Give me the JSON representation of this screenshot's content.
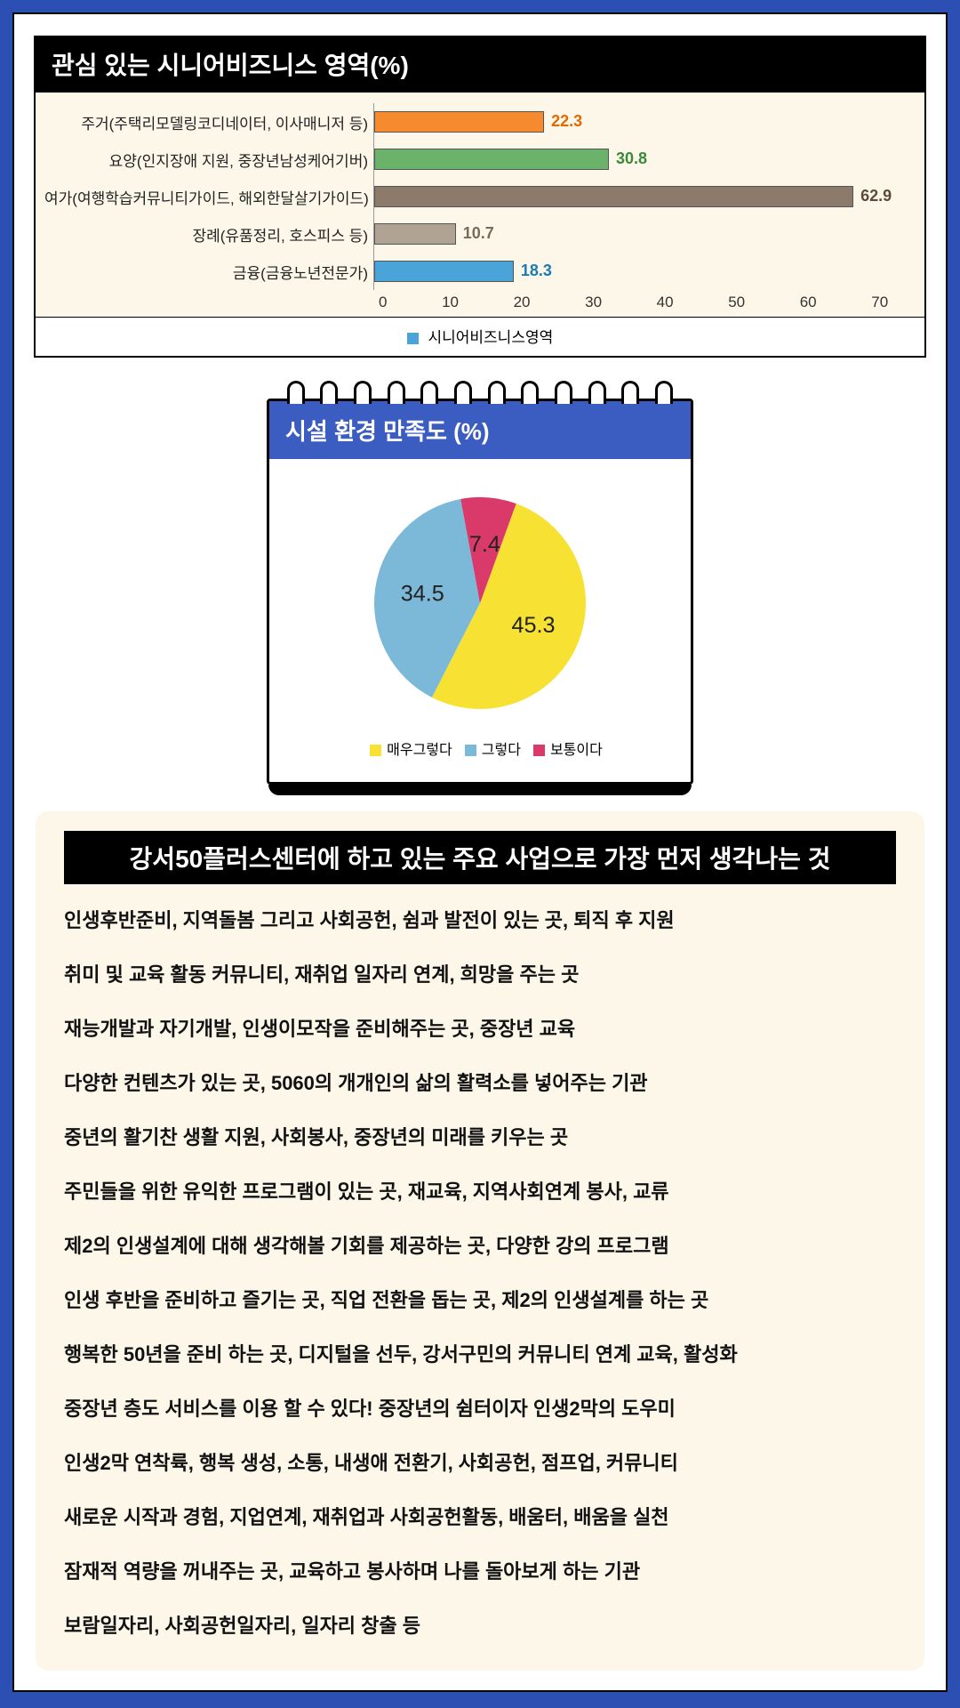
{
  "bar_chart": {
    "title": "관심 있는 시니어비즈니스 영역(%)",
    "type": "bar-horizontal",
    "xmax": 70,
    "xtick_step": 10,
    "xticks": [
      0,
      10,
      20,
      30,
      40,
      50,
      60,
      70
    ],
    "plot_bg": "#fdf7ea",
    "border_color": "#000000",
    "categories": [
      "주거(주택리모델링코디네이터, 이사매니저 등)",
      "요양(인지장애 지원, 중장년남성케어기버)",
      "여가(여행학습커뮤니티가이드, 해외한달살기가이드)",
      "장례(유품정리, 호스피스 등)",
      "금융(금융노년전문가)"
    ],
    "values": [
      22.3,
      30.8,
      62.9,
      10.7,
      18.3
    ],
    "colors": [
      "#f58b2e",
      "#6bb36b",
      "#8c7a6b",
      "#b0a393",
      "#4aa3d9"
    ],
    "value_colors": [
      "#e06a00",
      "#3a8a3a",
      "#5c4a3a",
      "#7a6a5a",
      "#1c7bb3"
    ],
    "legend_label": "시니어비즈니스영역",
    "legend_color": "#4aa3d9"
  },
  "pie_chart": {
    "title": "시설 환경 만족도 (%)",
    "type": "pie",
    "header_bg": "#3b5cc0",
    "border_color": "#000000",
    "slices": [
      {
        "label": "매우그렇다",
        "value": 45.3,
        "color": "#f7e233"
      },
      {
        "label": "그렇다",
        "value": 34.5,
        "color": "#7cb8d8"
      },
      {
        "label": "보통이다",
        "value": 7.4,
        "color": "#d93a6a"
      }
    ],
    "label_fontsize": 18,
    "start_angle_deg": -70
  },
  "text_card": {
    "title": "강서50플러스센터에 하고 있는 주요 사업으로 가장 먼저 생각나는 것",
    "bg": "#fdf7ea",
    "lines": [
      "인생후반준비, 지역돌봄 그리고 사회공헌, 쉼과 발전이 있는 곳, 퇴직 후 지원",
      "취미 및 교육 활동 커뮤니티, 재취업 일자리 연계, 희망을 주는 곳",
      "재능개발과 자기개발, 인생이모작을 준비해주는 곳, 중장년 교육",
      "다양한 컨텐츠가 있는 곳, 5060의 개개인의 삶의 활력소를 넣어주는 기관",
      "중년의 활기찬 생활 지원, 사회봉사, 중장년의 미래를 키우는 곳",
      "주민들을 위한 유익한 프로그램이 있는 곳, 재교육, 지역사회연계 봉사, 교류",
      "제2의 인생설계에 대해 생각해볼 기회를 제공하는 곳, 다양한 강의 프로그램",
      "인생 후반을 준비하고 즐기는 곳, 직업 전환을 돕는 곳, 제2의 인생설계를 하는 곳",
      "행복한 50년을 준비 하는 곳, 디지털을 선두, 강서구민의 커뮤니티 연계 교육, 활성화",
      "중장년 층도 서비스를 이용 할 수 있다! 중장년의 쉼터이자 인생2막의 도우미",
      "인생2막 연착륙, 행복 생성, 소통, 내생애 전환기, 사회공헌, 점프업, 커뮤니티",
      "새로운 시작과 경험, 지업연계, 재취업과 사회공헌활동, 배움터, 배움을 실천",
      "잠재적 역량을 꺼내주는 곳, 교육하고 봉사하며 나를 돌아보게 하는 기관",
      "보람일자리, 사회공헌일자리, 일자리 창출 등"
    ]
  }
}
